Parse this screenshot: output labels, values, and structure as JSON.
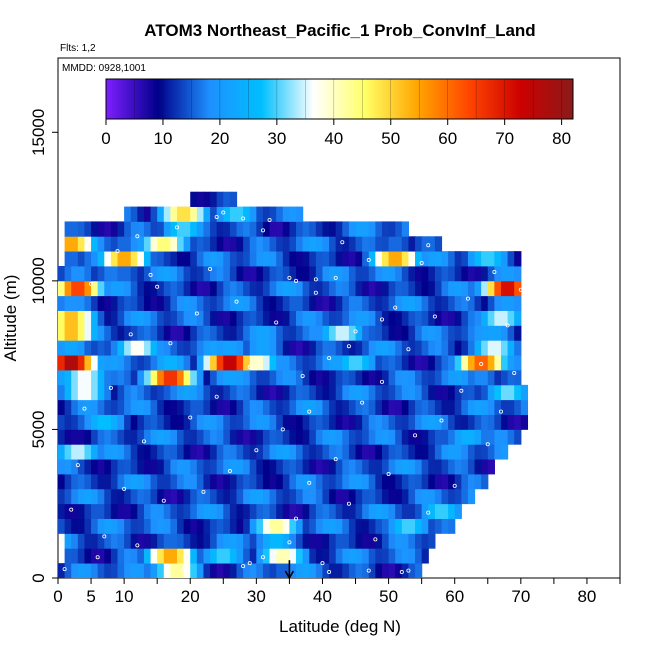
{
  "chart_data": {
    "type": "heatmap",
    "title": "ATOM3 Northeast_Pacific_1 Prob_ConvInf_Land",
    "flights_note": "Flts: 1,2",
    "dates_note": "MMDD: 0928,1001",
    "xlabel": "Latitude (deg N)",
    "ylabel": "Altitude (m)",
    "xlim": [
      0,
      85
    ],
    "ylim": [
      0,
      17500
    ],
    "x_ticks": [
      0,
      5,
      10,
      20,
      30,
      40,
      50,
      60,
      70,
      80
    ],
    "y_ticks": [
      0,
      5000,
      10000,
      15000
    ],
    "colorbar": {
      "min": 0,
      "max": 82,
      "ticks": [
        0,
        10,
        20,
        30,
        40,
        50,
        60,
        70,
        80
      ],
      "palette": [
        "#7f1fff",
        "#00008b",
        "#1e90ff",
        "#00bfff",
        "#ffffff",
        "#ffff66",
        "#ffa500",
        "#ff4500",
        "#cc0000",
        "#8b1a1a"
      ]
    },
    "domain_extent": {
      "altitude_band_height": 500,
      "rows": [
        {
          "alt": 0,
          "lat_min": 0,
          "lat_max": 55
        },
        {
          "alt": 500,
          "lat_min": 1,
          "lat_max": 56
        },
        {
          "alt": 1000,
          "lat_min": 1,
          "lat_max": 57
        },
        {
          "alt": 1500,
          "lat_min": 0,
          "lat_max": 60
        },
        {
          "alt": 2000,
          "lat_min": 0,
          "lat_max": 61
        },
        {
          "alt": 2500,
          "lat_min": 0,
          "lat_max": 63
        },
        {
          "alt": 3000,
          "lat_min": 0,
          "lat_max": 65
        },
        {
          "alt": 3500,
          "lat_min": 0,
          "lat_max": 66
        },
        {
          "alt": 4000,
          "lat_min": 0,
          "lat_max": 68
        },
        {
          "alt": 4500,
          "lat_min": 0,
          "lat_max": 70
        },
        {
          "alt": 5000,
          "lat_min": 0,
          "lat_max": 71
        },
        {
          "alt": 5500,
          "lat_min": 0,
          "lat_max": 71
        },
        {
          "alt": 6000,
          "lat_min": 0,
          "lat_max": 71
        },
        {
          "alt": 6500,
          "lat_min": 0,
          "lat_max": 70
        },
        {
          "alt": 7000,
          "lat_min": 0,
          "lat_max": 70
        },
        {
          "alt": 7500,
          "lat_min": 0,
          "lat_max": 70
        },
        {
          "alt": 8000,
          "lat_min": 0,
          "lat_max": 70
        },
        {
          "alt": 8500,
          "lat_min": 0,
          "lat_max": 70
        },
        {
          "alt": 9000,
          "lat_min": 0,
          "lat_max": 70
        },
        {
          "alt": 9500,
          "lat_min": 0,
          "lat_max": 70
        },
        {
          "alt": 10000,
          "lat_min": 0,
          "lat_max": 70
        },
        {
          "alt": 10500,
          "lat_min": 1,
          "lat_max": 70
        },
        {
          "alt": 11000,
          "lat_min": 1,
          "lat_max": 58
        },
        {
          "alt": 11500,
          "lat_min": 1,
          "lat_max": 53
        },
        {
          "alt": 12000,
          "lat_min": 10,
          "lat_max": 37
        },
        {
          "alt": 12500,
          "lat_min": 20,
          "lat_max": 27
        }
      ]
    },
    "hotspots": [
      {
        "lat": 2,
        "alt": 7250,
        "value": 78
      },
      {
        "lat": 2,
        "alt": 8500,
        "value": 72
      },
      {
        "lat": 3,
        "alt": 9750,
        "value": 65
      },
      {
        "lat": 2,
        "alt": 11250,
        "value": 55
      },
      {
        "lat": 4,
        "alt": 6500,
        "value": 50
      },
      {
        "lat": 3,
        "alt": 4200,
        "value": 35
      },
      {
        "lat": 7,
        "alt": 5200,
        "value": 28
      },
      {
        "lat": 10,
        "alt": 10750,
        "value": 55
      },
      {
        "lat": 12,
        "alt": 7800,
        "value": 38
      },
      {
        "lat": 16,
        "alt": 11250,
        "value": 45
      },
      {
        "lat": 17,
        "alt": 6800,
        "value": 68
      },
      {
        "lat": 19,
        "alt": 12100,
        "value": 55
      },
      {
        "lat": 17,
        "alt": 750,
        "value": 55
      },
      {
        "lat": 18,
        "alt": 350,
        "value": 45
      },
      {
        "lat": 25,
        "alt": 800,
        "value": 30
      },
      {
        "lat": 26,
        "alt": 7250,
        "value": 75
      },
      {
        "lat": 30,
        "alt": 7250,
        "value": 40
      },
      {
        "lat": 31,
        "alt": 8000,
        "value": 30
      },
      {
        "lat": 33,
        "alt": 1600,
        "value": 48
      },
      {
        "lat": 34,
        "alt": 700,
        "value": 42
      },
      {
        "lat": 27,
        "alt": 12300,
        "value": 30
      },
      {
        "lat": 43,
        "alt": 8250,
        "value": 35
      },
      {
        "lat": 45,
        "alt": 7250,
        "value": 30
      },
      {
        "lat": 51,
        "alt": 10750,
        "value": 55
      },
      {
        "lat": 53,
        "alt": 1750,
        "value": 30
      },
      {
        "lat": 58,
        "alt": 2200,
        "value": 30
      },
      {
        "lat": 64,
        "alt": 7250,
        "value": 62
      },
      {
        "lat": 66,
        "alt": 7900,
        "value": 40
      },
      {
        "lat": 68,
        "alt": 9750,
        "value": 72
      },
      {
        "lat": 67,
        "alt": 8750,
        "value": 35
      },
      {
        "lat": 68,
        "alt": 6300,
        "value": 32
      },
      {
        "lat": 62,
        "alt": 4800,
        "value": 25
      },
      {
        "lat": 65,
        "alt": 10800,
        "value": 30
      }
    ],
    "sample_points": [
      [
        1,
        300
      ],
      [
        2,
        2300
      ],
      [
        3,
        3800
      ],
      [
        4,
        5700
      ],
      [
        5,
        9900
      ],
      [
        6,
        700
      ],
      [
        7,
        1400
      ],
      [
        8,
        6400
      ],
      [
        9,
        11000
      ],
      [
        10,
        3000
      ],
      [
        11,
        8200
      ],
      [
        12,
        1100
      ],
      [
        13,
        4600
      ],
      [
        14,
        10200
      ],
      [
        15,
        9800
      ],
      [
        16,
        2600
      ],
      [
        17,
        7900
      ],
      [
        18,
        11800
      ],
      [
        19,
        300
      ],
      [
        20,
        5400
      ],
      [
        21,
        8900
      ],
      [
        22,
        2900
      ],
      [
        23,
        10400
      ],
      [
        24,
        6100
      ],
      [
        25,
        12300
      ],
      [
        26,
        3600
      ],
      [
        27,
        9300
      ],
      [
        28,
        400
      ],
      [
        29,
        7100
      ],
      [
        30,
        4300
      ],
      [
        31,
        11700
      ],
      [
        32,
        1600
      ],
      [
        33,
        8600
      ],
      [
        34,
        5000
      ],
      [
        35,
        10100
      ],
      [
        36,
        2000
      ],
      [
        37,
        6800
      ],
      [
        38,
        3200
      ],
      [
        39,
        9600
      ],
      [
        40,
        500
      ],
      [
        41,
        7400
      ],
      [
        42,
        4000
      ],
      [
        43,
        11300
      ],
      [
        44,
        2500
      ],
      [
        45,
        8300
      ],
      [
        46,
        5900
      ],
      [
        47,
        10700
      ],
      [
        48,
        1300
      ],
      [
        49,
        6600
      ],
      [
        50,
        3500
      ],
      [
        51,
        9100
      ],
      [
        52,
        200
      ],
      [
        53,
        7700
      ],
      [
        54,
        4800
      ],
      [
        55,
        10600
      ],
      [
        56,
        2200
      ],
      [
        57,
        8800
      ],
      [
        58,
        5300
      ],
      [
        59,
        11100
      ],
      [
        60,
        3100
      ],
      [
        61,
        6300
      ],
      [
        62,
        9400
      ],
      [
        63,
        1900
      ],
      [
        64,
        7200
      ],
      [
        65,
        4500
      ],
      [
        66,
        10300
      ],
      [
        67,
        5600
      ],
      [
        68,
        8500
      ],
      [
        69,
        6900
      ],
      [
        70,
        9700
      ],
      [
        29,
        500
      ],
      [
        31,
        700
      ],
      [
        33,
        900
      ],
      [
        35,
        1200
      ],
      [
        41,
        200
      ],
      [
        47,
        250
      ],
      [
        53,
        250
      ],
      [
        38,
        5600
      ],
      [
        44,
        7800
      ],
      [
        49,
        8700
      ],
      [
        36,
        10000
      ],
      [
        39,
        10050
      ],
      [
        42,
        10100
      ],
      [
        56,
        11200
      ],
      [
        59,
        11250
      ],
      [
        62,
        11300
      ],
      [
        24,
        12150
      ],
      [
        28,
        12100
      ],
      [
        32,
        12050
      ],
      [
        12,
        11500
      ]
    ],
    "annotations": [
      {
        "type": "arrow",
        "lat": 35,
        "alt_from": 600,
        "alt_to": 0
      }
    ]
  }
}
